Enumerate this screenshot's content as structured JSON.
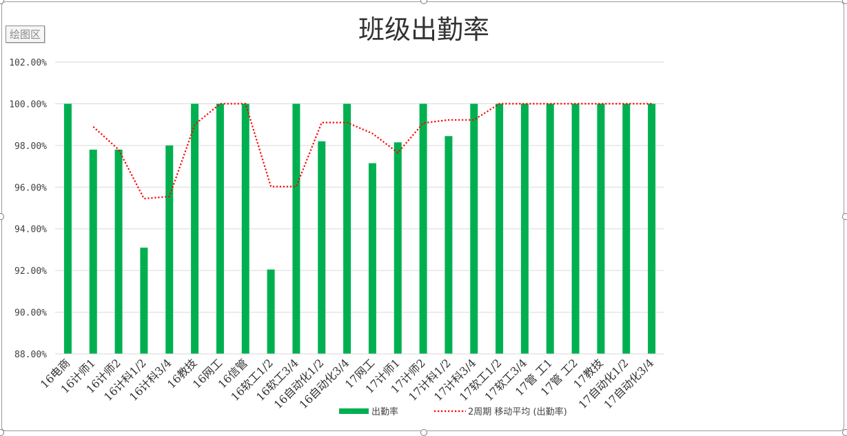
{
  "plot_area_tag": "绘图区",
  "chart_data": {
    "type": "bar",
    "title": "班级出勤率",
    "categories": [
      "16电商",
      "16计师1",
      "16计师2",
      "16计科1/2",
      "16计科3/4",
      "16教技",
      "16网工",
      "16信管",
      "16软工1/2",
      "16软工3/4",
      "16自动化1/2",
      "16自动化3/4",
      "17网工",
      "17计师1",
      "17计师2",
      "17计科1/2",
      "17计科3/4",
      "17软工1/2",
      "17软工3/4",
      "17管 工1",
      "17管 工2",
      "17教技",
      "17自动化1/2",
      "17自动化3/4"
    ],
    "series": [
      {
        "name": "出勤率",
        "type": "bar",
        "color": "#00B050",
        "values": [
          1.0,
          0.978,
          0.978,
          0.931,
          0.98,
          1.0,
          1.0,
          1.0,
          0.9205,
          1.0,
          0.982,
          1.0,
          0.9715,
          0.9815,
          1.0,
          0.9845,
          1.0,
          1.0,
          1.0,
          1.0,
          1.0,
          1.0,
          1.0,
          1.0
        ]
      },
      {
        "name": "2周期 移动平均 (出勤率)",
        "type": "line",
        "style": "dotted",
        "color": "#FF0000",
        "values": [
          null,
          0.989,
          0.978,
          0.9545,
          0.9555,
          0.99,
          1.0,
          1.0,
          0.96025,
          0.96025,
          0.991,
          0.991,
          0.98575,
          0.9765,
          0.99075,
          0.99225,
          0.99225,
          1.0,
          1.0,
          1.0,
          1.0,
          1.0,
          1.0,
          1.0
        ]
      }
    ],
    "yticks": [
      "88.00%",
      "90.00%",
      "92.00%",
      "94.00%",
      "96.00%",
      "98.00%",
      "100.00%",
      "102.00%"
    ],
    "ylim": [
      0.88,
      1.02
    ],
    "grid": true,
    "legend": "bottom"
  }
}
